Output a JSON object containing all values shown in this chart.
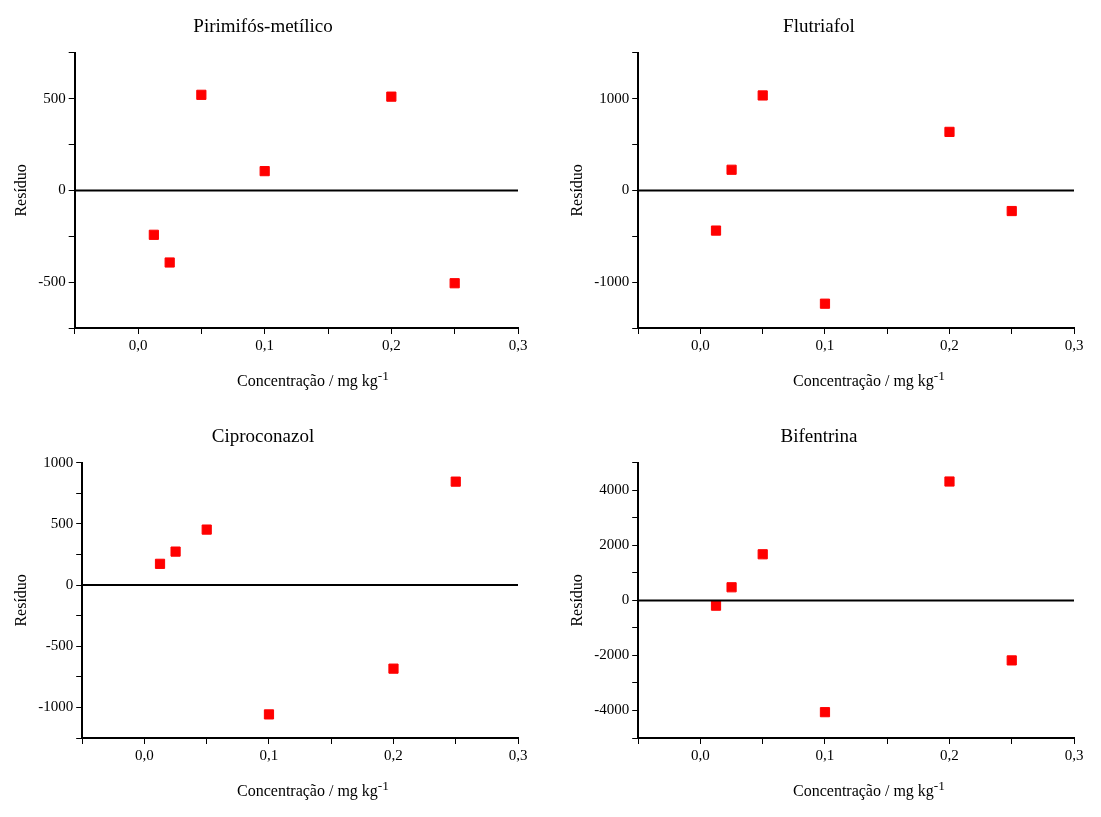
{
  "chart_data": [
    {
      "type": "scatter",
      "title": "Pirimifós-metílico",
      "xlabel": "Concentração / mg kg$^{-1}$",
      "ylabel": "Resíduo",
      "x": [
        0.0125,
        0.025,
        0.05,
        0.1,
        0.2,
        0.25
      ],
      "values": [
        -242,
        -393,
        521,
        105,
        511,
        -506
      ],
      "color": "#ff0000",
      "marker": "square",
      "grid": false,
      "legend": false,
      "xlim": [
        -0.05,
        0.3
      ],
      "xticks": [
        {
          "value": -0.05,
          "label": null
        },
        {
          "value": 0,
          "label": "0,0"
        },
        {
          "value": 0.05,
          "label": null
        },
        {
          "value": 0.1,
          "label": "0,1"
        },
        {
          "value": 0.15,
          "label": null
        },
        {
          "value": 0.2,
          "label": "0,2"
        },
        {
          "value": 0.25,
          "label": null
        },
        {
          "value": 0.3,
          "label": "0,3"
        }
      ],
      "ylim": [
        -750,
        750
      ],
      "yticks": [
        {
          "value": -750,
          "label": null
        },
        -500,
        {
          "value": -250,
          "label": null
        },
        0,
        {
          "value": 250,
          "label": null
        },
        500,
        {
          "value": 750,
          "label": null
        }
      ],
      "ref_lines": [
        {
          "axis": "y",
          "value": 0
        }
      ]
    },
    {
      "type": "scatter",
      "title": "Flutriafol",
      "xlabel": "Concentração / mg kg$^{-1}$",
      "ylabel": "Resíduo",
      "x": [
        0.0125,
        0.025,
        0.05,
        0.1,
        0.2,
        0.25
      ],
      "values": [
        -438,
        225,
        1035,
        -1235,
        638,
        -225
      ],
      "color": "#ff0000",
      "marker": "square",
      "grid": false,
      "legend": false,
      "xlim": [
        -0.05,
        0.3
      ],
      "xticks": [
        {
          "value": -0.05,
          "label": null
        },
        {
          "value": 0,
          "label": "0,0"
        },
        {
          "value": 0.05,
          "label": null
        },
        {
          "value": 0.1,
          "label": "0,1"
        },
        {
          "value": 0.15,
          "label": null
        },
        {
          "value": 0.2,
          "label": "0,2"
        },
        {
          "value": 0.25,
          "label": null
        },
        {
          "value": 0.3,
          "label": "0,3"
        }
      ],
      "ylim": [
        -1500,
        1500
      ],
      "yticks": [
        {
          "value": -1500,
          "label": null
        },
        -1000,
        {
          "value": -500,
          "label": null
        },
        0,
        {
          "value": 500,
          "label": null
        },
        1000,
        {
          "value": 1500,
          "label": null
        }
      ],
      "ref_lines": [
        {
          "axis": "y",
          "value": 0
        }
      ]
    },
    {
      "type": "scatter",
      "title": "Ciproconazol",
      "xlabel": "Concentração / mg kg$^{-1}$",
      "ylabel": "Resíduo",
      "x": [
        0.0125,
        0.025,
        0.05,
        0.1,
        0.2,
        0.25
      ],
      "values": [
        174,
        274,
        454,
        -1057,
        -683,
        846
      ],
      "color": "#ff0000",
      "marker": "square",
      "grid": false,
      "legend": false,
      "xlim": [
        -0.05,
        0.3
      ],
      "xticks": [
        {
          "value": -0.05,
          "label": null
        },
        {
          "value": 0,
          "label": "0,0"
        },
        {
          "value": 0.05,
          "label": null
        },
        {
          "value": 0.1,
          "label": "0,1"
        },
        {
          "value": 0.15,
          "label": null
        },
        {
          "value": 0.2,
          "label": "0,2"
        },
        {
          "value": 0.25,
          "label": null
        },
        {
          "value": 0.3,
          "label": "0,3"
        }
      ],
      "ylim": [
        -1250,
        1000
      ],
      "yticks": [
        {
          "value": -1250,
          "label": null
        },
        -1000,
        {
          "value": -750,
          "label": null
        },
        -500,
        {
          "value": -250,
          "label": null
        },
        0,
        {
          "value": 250,
          "label": null
        },
        500,
        {
          "value": 750,
          "label": null
        },
        1000
      ],
      "ref_lines": [
        {
          "axis": "y",
          "value": 0
        }
      ]
    },
    {
      "type": "scatter",
      "title": "Bifentrina",
      "xlabel": "Concentração / mg kg$^{-1}$",
      "ylabel": "Resíduo",
      "x": [
        0.0125,
        0.025,
        0.05,
        0.1,
        0.2,
        0.25
      ],
      "values": [
        -191,
        477,
        1676,
        -4061,
        4320,
        -2180
      ],
      "color": "#ff0000",
      "marker": "square",
      "grid": false,
      "legend": false,
      "xlim": [
        -0.05,
        0.3
      ],
      "xticks": [
        {
          "value": -0.05,
          "label": null
        },
        {
          "value": 0,
          "label": "0,0"
        },
        {
          "value": 0.05,
          "label": null
        },
        {
          "value": 0.1,
          "label": "0,1"
        },
        {
          "value": 0.15,
          "label": null
        },
        {
          "value": 0.2,
          "label": "0,2"
        },
        {
          "value": 0.25,
          "label": null
        },
        {
          "value": 0.3,
          "label": "0,3"
        }
      ],
      "ylim": [
        -5000,
        5000
      ],
      "yticks": [
        {
          "value": -5000,
          "label": null
        },
        -4000,
        {
          "value": -3000,
          "label": null
        },
        -2000,
        {
          "value": -1000,
          "label": null
        },
        0,
        {
          "value": 1000,
          "label": null
        },
        2000,
        {
          "value": 3000,
          "label": null
        },
        4000,
        {
          "value": 5000,
          "label": null
        }
      ],
      "ref_lines": [
        {
          "axis": "y",
          "value": 0
        }
      ]
    }
  ]
}
